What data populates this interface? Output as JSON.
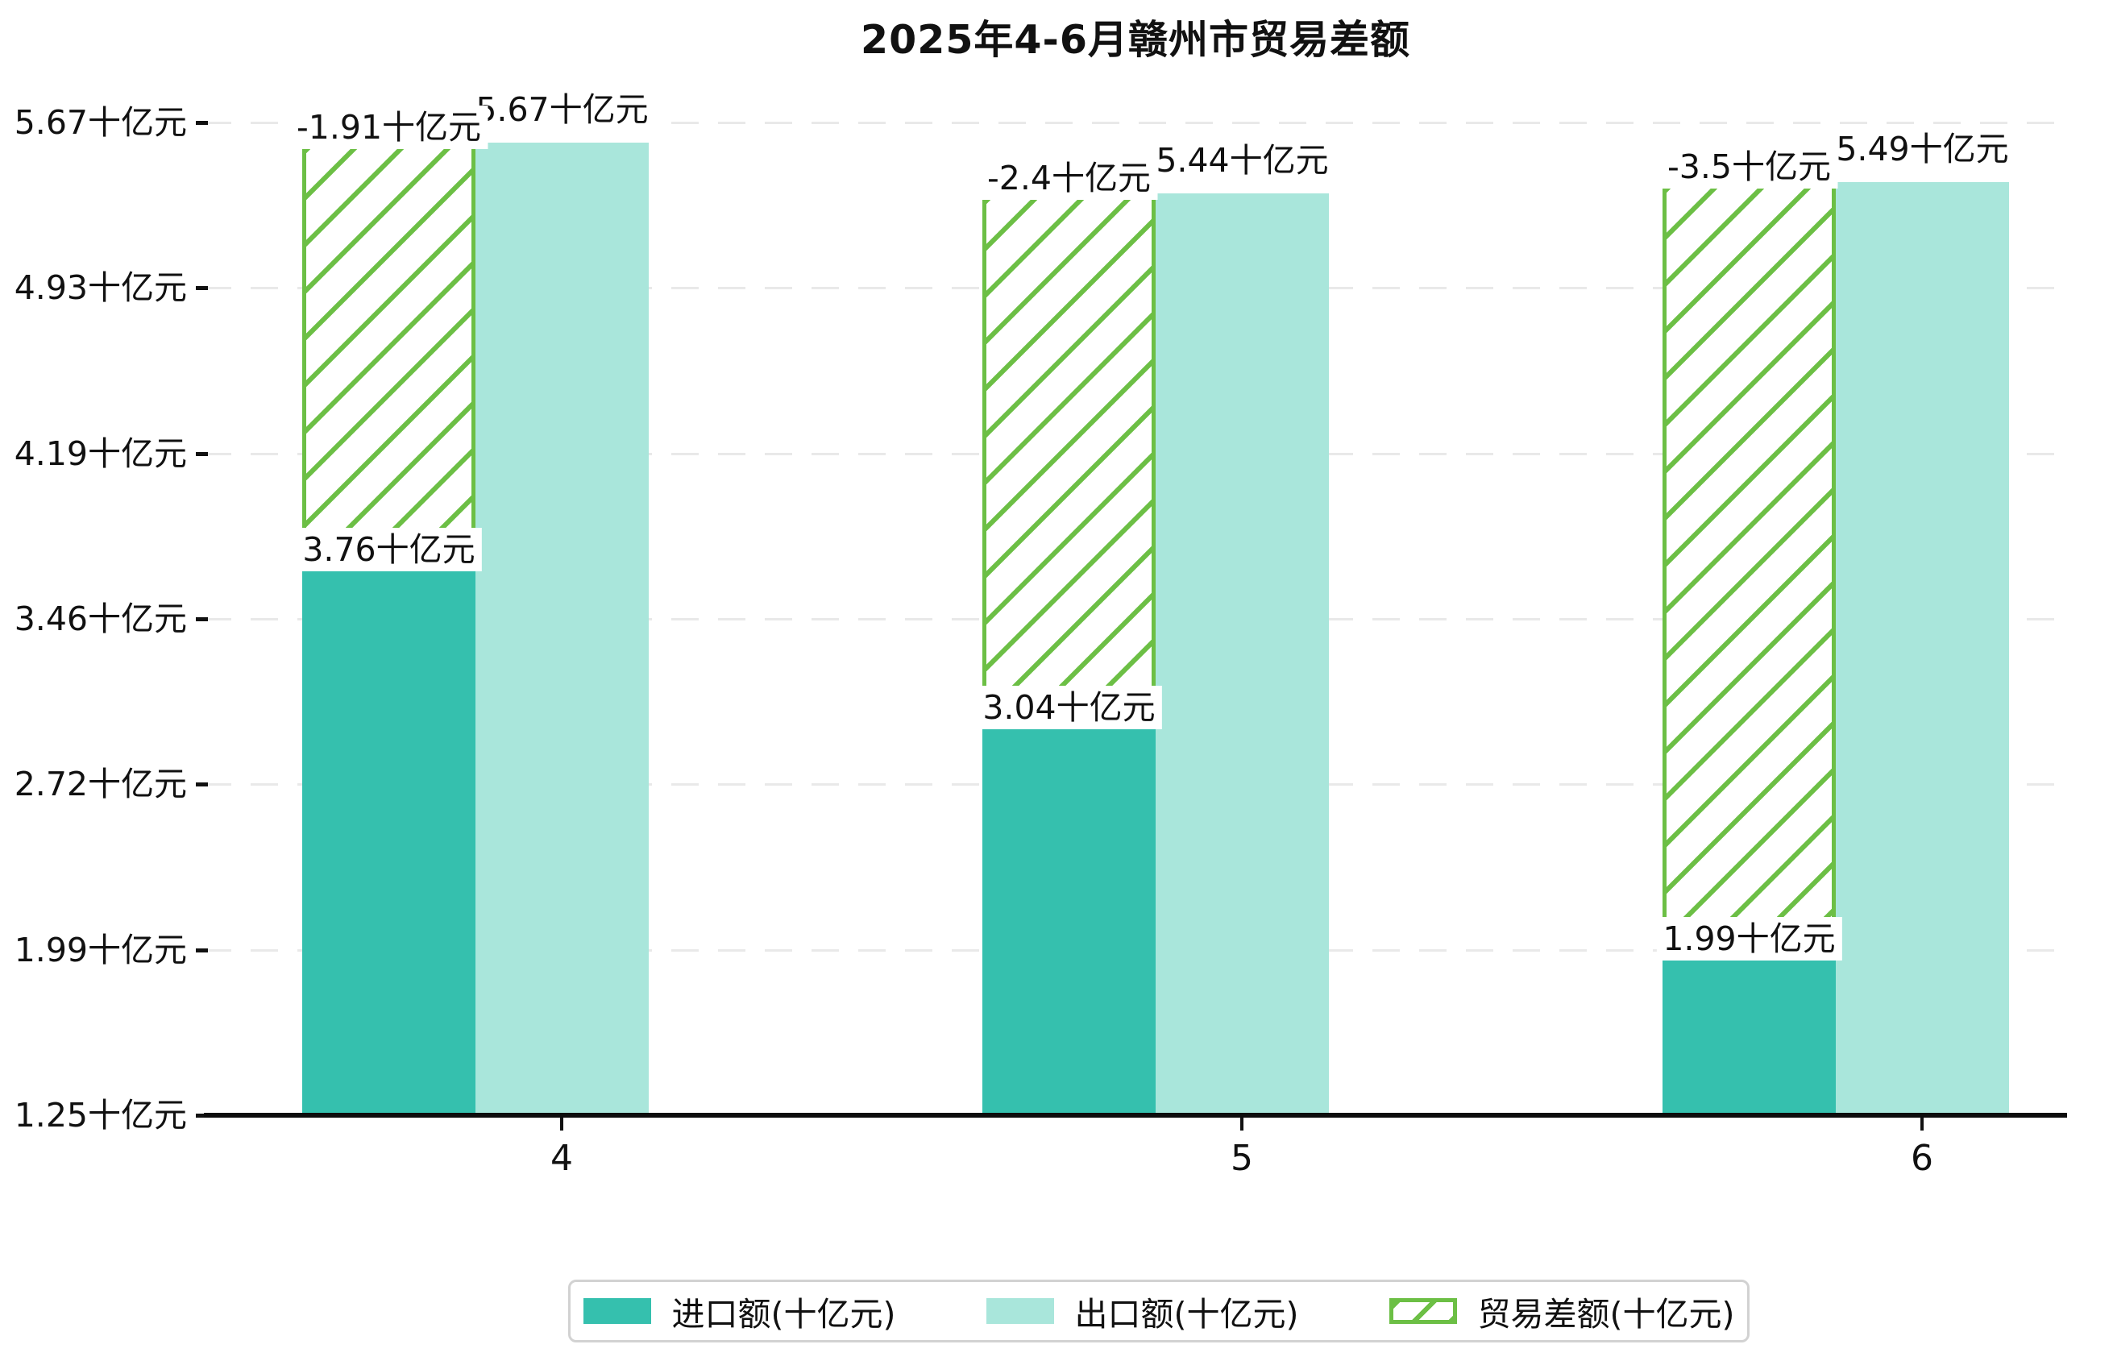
{
  "chart_data": {
    "type": "bar",
    "title": "2025年4-6月赣州市贸易差额",
    "categories": [
      "4",
      "5",
      "6"
    ],
    "series": [
      {
        "name": "进口额(十亿元)",
        "role": "import",
        "style": "solid",
        "values": [
          3.76,
          3.04,
          1.99
        ],
        "labels": [
          "3.76十亿元",
          "3.04十亿元",
          "1.99十亿元"
        ]
      },
      {
        "name": "出口额(十亿元)",
        "role": "export",
        "style": "solid",
        "values": [
          5.67,
          5.44,
          5.49
        ],
        "labels": [
          "5.67十亿元",
          "5.44十亿元",
          "5.49十亿元"
        ]
      },
      {
        "name": "贸易差额(十亿元)",
        "role": "balance",
        "style": "hatched",
        "values": [
          -1.91,
          -2.4,
          -3.5
        ],
        "labels": [
          "-1.91十亿元",
          "-2.4十亿元",
          "-3.5十亿元"
        ]
      }
    ],
    "y_ticks": [
      {
        "value": 5.67,
        "label": "5.67十亿元"
      },
      {
        "value": 4.93,
        "label": "4.93十亿元"
      },
      {
        "value": 4.19,
        "label": "4.19十亿元"
      },
      {
        "value": 3.46,
        "label": "3.46十亿元"
      },
      {
        "value": 2.72,
        "label": "2.72十亿元"
      },
      {
        "value": 1.99,
        "label": "1.99十亿元"
      },
      {
        "value": 1.25,
        "label": "1.25十亿元"
      }
    ],
    "ylim": [
      1.25,
      5.67
    ],
    "baseline_value": 1.25,
    "xlabel": "",
    "ylabel": "",
    "grid": "dashed-horizontal",
    "legend_position": "bottom-center"
  },
  "colors": {
    "import": "#35c0ae",
    "export": "#a9e6db",
    "balance": "#6cbf45",
    "grid": "#e9e9e9",
    "axis": "#0d0d0d",
    "text": "#111111",
    "label_bg": "#ffffff",
    "legend_border": "#d2d2d2",
    "background": "#ffffff"
  }
}
